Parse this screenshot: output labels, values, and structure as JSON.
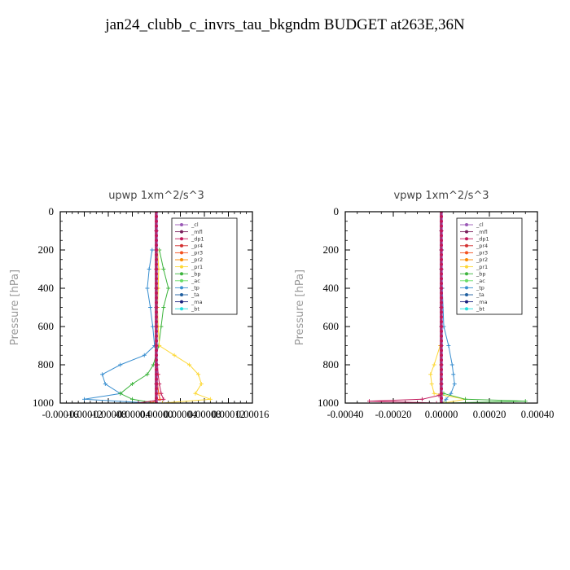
{
  "title": "jan24_clubb_c_invrs_tau_bkgndm  BUDGET at263E,36N",
  "legend_entries": [
    "_cl",
    "_mfl",
    "_dp1",
    "_pr4",
    "_pr3",
    "_pr2",
    "_pr1",
    "_bp",
    "_ac",
    "_tp",
    "_ta",
    "_ma",
    "_bt"
  ],
  "series_colors": {
    "_cl": "#9b59b6",
    "_mfl": "#7a1f5c",
    "_dp1": "#c2185b",
    "_pr4": "#d32f2f",
    "_pr3": "#f4511e",
    "_pr2": "#fb8c00",
    "_pr1": "#fdd835",
    "_bp": "#3cb43c",
    "_ac": "#66dd66",
    "_tp": "#3a8fd0",
    "_ta": "#1f5fa0",
    "_ma": "#1a237e",
    "_bt": "#22dddd"
  },
  "chart_data": [
    {
      "type": "line",
      "title": "upwp   1xm^2/s^3",
      "ylabel": "Pressure [hPa]",
      "xlabel": "",
      "ylim": [
        1000,
        0
      ],
      "yticks": [
        "0",
        "200",
        "400",
        "600",
        "800",
        "1000"
      ],
      "xlim": [
        -0.00016,
        0.00016
      ],
      "xticks": [
        "-0.00016",
        "-0.00012",
        "-0.00008",
        "-0.00004",
        "0.00000",
        "0.00004",
        "0.00008",
        "0.00012",
        "0.00016"
      ],
      "legend_position": "top-right",
      "series": [
        {
          "name": "_tp",
          "y": [
            200,
            300,
            400,
            500,
            600,
            700,
            750,
            800,
            850,
            900,
            950,
            980,
            1000
          ],
          "x": [
            -7e-06,
            -1.2e-05,
            -1.5e-05,
            -1e-05,
            -6e-06,
            -3e-06,
            -2e-05,
            -6e-05,
            -9e-05,
            -8.5e-05,
            -6e-05,
            -0.00012,
            -1e-05
          ]
        },
        {
          "name": "_bp",
          "y": [
            200,
            300,
            400,
            500,
            600,
            700,
            800,
            850,
            900,
            950,
            980,
            1000
          ],
          "x": [
            5e-06,
            1.2e-05,
            2e-05,
            1.2e-05,
            8e-06,
            4e-06,
            -5e-06,
            -1.5e-05,
            -4e-05,
            -6e-05,
            -4e-05,
            -2e-06
          ]
        },
        {
          "name": "_pr1",
          "y": [
            200,
            300,
            400,
            500,
            600,
            700,
            750,
            800,
            850,
            900,
            950,
            980,
            1000
          ],
          "x": [
            2e-06,
            4e-06,
            3e-06,
            2e-06,
            3e-06,
            5e-06,
            3e-05,
            5.5e-05,
            7e-05,
            7.5e-05,
            6.5e-05,
            9e-05,
            1e-05
          ]
        },
        {
          "name": "_dp1",
          "y": [
            800,
            850,
            900,
            950,
            980,
            1000
          ],
          "x": [
            2e-06,
            3e-06,
            5e-06,
            8e-06,
            1.2e-05,
            -3e-05
          ]
        },
        {
          "name": "_pr3",
          "y": [
            850,
            900,
            950,
            980,
            1000
          ],
          "x": [
            1e-06,
            2e-06,
            4e-06,
            6e-06,
            -1e-05
          ]
        },
        {
          "name": "_mfl",
          "y": [
            0,
            100,
            200,
            300,
            400,
            500,
            600,
            700,
            800,
            900,
            1000
          ],
          "x": [
            0,
            0,
            0,
            0,
            0,
            0,
            0,
            0,
            0,
            0,
            0
          ]
        }
      ]
    },
    {
      "type": "line",
      "title": "vpwp   1xm^2/s^3",
      "ylabel": "Pressure [hPa]",
      "xlabel": "",
      "ylim": [
        1000,
        0
      ],
      "yticks": [
        "0",
        "200",
        "400",
        "600",
        "800",
        "1000"
      ],
      "xlim": [
        -0.0004,
        0.0004
      ],
      "xticks": [
        "-0.00040",
        "-0.00020",
        "0.00000",
        "0.00020",
        "0.00040"
      ],
      "legend_position": "top-right",
      "series": [
        {
          "name": "_tp",
          "y": [
            200,
            400,
            600,
            700,
            800,
            850,
            900,
            950,
            980,
            1000
          ],
          "x": [
            2e-06,
            4e-06,
            1e-05,
            3e-05,
            4.5e-05,
            5e-05,
            5.5e-05,
            4e-05,
            2e-05,
            5e-06
          ]
        },
        {
          "name": "_pr1",
          "y": [
            700,
            800,
            850,
            900,
            950,
            980,
            1000
          ],
          "x": [
            -5e-06,
            -3e-05,
            -4.5e-05,
            -4e-05,
            -3e-05,
            0.0001,
            1e-05
          ]
        },
        {
          "name": "_bp",
          "y": [
            950,
            980,
            990,
            1000
          ],
          "x": [
            1e-05,
            0.0001,
            0.00035,
            2e-05
          ]
        },
        {
          "name": "_dp1",
          "y": [
            960,
            980,
            990,
            1000
          ],
          "x": [
            -1e-05,
            -8e-05,
            -0.0003,
            -2e-05
          ]
        },
        {
          "name": "_mfl",
          "y": [
            0,
            100,
            200,
            300,
            400,
            500,
            600,
            700,
            800,
            900,
            1000
          ],
          "x": [
            0,
            0,
            0,
            0,
            0,
            0,
            0,
            0,
            0,
            0,
            0
          ]
        }
      ]
    }
  ]
}
